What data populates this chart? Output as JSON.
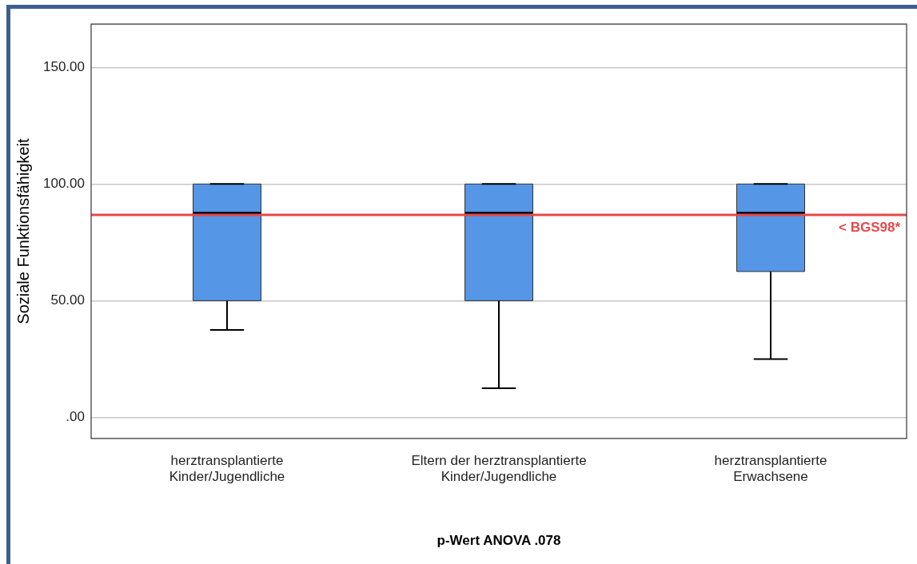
{
  "chart_data": {
    "type": "box",
    "xlabel": "p-Wert ANOVA .078",
    "ylabel": "Soziale Funktionsfähigkeit",
    "categories": [
      "herztransplantierte Kinder/Jugendliche",
      "Eltern der herztransplantierte Kinder/Jugendliche",
      "herztransplantierte Erwachsene"
    ],
    "color": "#5596e6",
    "boxes": [
      {
        "low": 37.5,
        "q1": 50,
        "median": 87.5,
        "q3": 100,
        "high": 100
      },
      {
        "low": 12.5,
        "q1": 50,
        "median": 87.5,
        "q3": 100,
        "high": 100
      },
      {
        "low": 25,
        "q1": 62.5,
        "median": 87.5,
        "q3": 100,
        "high": 100
      }
    ],
    "ylim": [
      -9,
      168.5
    ],
    "yticks": [
      {
        "value": 0,
        "label": ".00"
      },
      {
        "value": 50,
        "label": "50.00"
      },
      {
        "value": 100,
        "label": "100.00"
      },
      {
        "value": 150,
        "label": "150.00"
      }
    ],
    "grid": "y",
    "ref_lines": [
      {
        "axis": "y",
        "value": 86.8,
        "label": "< BGS98*",
        "color": "#e8474a"
      }
    ]
  }
}
